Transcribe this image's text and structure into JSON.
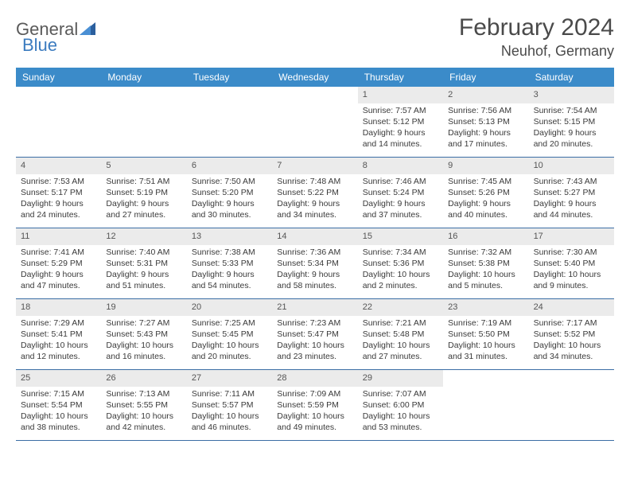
{
  "logo": {
    "text1": "General",
    "text2": "Blue"
  },
  "title": "February 2024",
  "location": "Neuhof, Germany",
  "colors": {
    "header_bg": "#3b8bc9",
    "header_text": "#ffffff",
    "daynum_bg": "#ebebeb",
    "border": "#3b6ea5",
    "text": "#3a3a3a",
    "logo_gray": "#5a5a5a",
    "logo_blue": "#3b7bbf"
  },
  "day_names": [
    "Sunday",
    "Monday",
    "Tuesday",
    "Wednesday",
    "Thursday",
    "Friday",
    "Saturday"
  ],
  "weeks": [
    [
      {
        "empty": true
      },
      {
        "empty": true
      },
      {
        "empty": true
      },
      {
        "empty": true
      },
      {
        "n": "1",
        "sr": "Sunrise: 7:57 AM",
        "ss": "Sunset: 5:12 PM",
        "d1": "Daylight: 9 hours",
        "d2": "and 14 minutes."
      },
      {
        "n": "2",
        "sr": "Sunrise: 7:56 AM",
        "ss": "Sunset: 5:13 PM",
        "d1": "Daylight: 9 hours",
        "d2": "and 17 minutes."
      },
      {
        "n": "3",
        "sr": "Sunrise: 7:54 AM",
        "ss": "Sunset: 5:15 PM",
        "d1": "Daylight: 9 hours",
        "d2": "and 20 minutes."
      }
    ],
    [
      {
        "n": "4",
        "sr": "Sunrise: 7:53 AM",
        "ss": "Sunset: 5:17 PM",
        "d1": "Daylight: 9 hours",
        "d2": "and 24 minutes."
      },
      {
        "n": "5",
        "sr": "Sunrise: 7:51 AM",
        "ss": "Sunset: 5:19 PM",
        "d1": "Daylight: 9 hours",
        "d2": "and 27 minutes."
      },
      {
        "n": "6",
        "sr": "Sunrise: 7:50 AM",
        "ss": "Sunset: 5:20 PM",
        "d1": "Daylight: 9 hours",
        "d2": "and 30 minutes."
      },
      {
        "n": "7",
        "sr": "Sunrise: 7:48 AM",
        "ss": "Sunset: 5:22 PM",
        "d1": "Daylight: 9 hours",
        "d2": "and 34 minutes."
      },
      {
        "n": "8",
        "sr": "Sunrise: 7:46 AM",
        "ss": "Sunset: 5:24 PM",
        "d1": "Daylight: 9 hours",
        "d2": "and 37 minutes."
      },
      {
        "n": "9",
        "sr": "Sunrise: 7:45 AM",
        "ss": "Sunset: 5:26 PM",
        "d1": "Daylight: 9 hours",
        "d2": "and 40 minutes."
      },
      {
        "n": "10",
        "sr": "Sunrise: 7:43 AM",
        "ss": "Sunset: 5:27 PM",
        "d1": "Daylight: 9 hours",
        "d2": "and 44 minutes."
      }
    ],
    [
      {
        "n": "11",
        "sr": "Sunrise: 7:41 AM",
        "ss": "Sunset: 5:29 PM",
        "d1": "Daylight: 9 hours",
        "d2": "and 47 minutes."
      },
      {
        "n": "12",
        "sr": "Sunrise: 7:40 AM",
        "ss": "Sunset: 5:31 PM",
        "d1": "Daylight: 9 hours",
        "d2": "and 51 minutes."
      },
      {
        "n": "13",
        "sr": "Sunrise: 7:38 AM",
        "ss": "Sunset: 5:33 PM",
        "d1": "Daylight: 9 hours",
        "d2": "and 54 minutes."
      },
      {
        "n": "14",
        "sr": "Sunrise: 7:36 AM",
        "ss": "Sunset: 5:34 PM",
        "d1": "Daylight: 9 hours",
        "d2": "and 58 minutes."
      },
      {
        "n": "15",
        "sr": "Sunrise: 7:34 AM",
        "ss": "Sunset: 5:36 PM",
        "d1": "Daylight: 10 hours",
        "d2": "and 2 minutes."
      },
      {
        "n": "16",
        "sr": "Sunrise: 7:32 AM",
        "ss": "Sunset: 5:38 PM",
        "d1": "Daylight: 10 hours",
        "d2": "and 5 minutes."
      },
      {
        "n": "17",
        "sr": "Sunrise: 7:30 AM",
        "ss": "Sunset: 5:40 PM",
        "d1": "Daylight: 10 hours",
        "d2": "and 9 minutes."
      }
    ],
    [
      {
        "n": "18",
        "sr": "Sunrise: 7:29 AM",
        "ss": "Sunset: 5:41 PM",
        "d1": "Daylight: 10 hours",
        "d2": "and 12 minutes."
      },
      {
        "n": "19",
        "sr": "Sunrise: 7:27 AM",
        "ss": "Sunset: 5:43 PM",
        "d1": "Daylight: 10 hours",
        "d2": "and 16 minutes."
      },
      {
        "n": "20",
        "sr": "Sunrise: 7:25 AM",
        "ss": "Sunset: 5:45 PM",
        "d1": "Daylight: 10 hours",
        "d2": "and 20 minutes."
      },
      {
        "n": "21",
        "sr": "Sunrise: 7:23 AM",
        "ss": "Sunset: 5:47 PM",
        "d1": "Daylight: 10 hours",
        "d2": "and 23 minutes."
      },
      {
        "n": "22",
        "sr": "Sunrise: 7:21 AM",
        "ss": "Sunset: 5:48 PM",
        "d1": "Daylight: 10 hours",
        "d2": "and 27 minutes."
      },
      {
        "n": "23",
        "sr": "Sunrise: 7:19 AM",
        "ss": "Sunset: 5:50 PM",
        "d1": "Daylight: 10 hours",
        "d2": "and 31 minutes."
      },
      {
        "n": "24",
        "sr": "Sunrise: 7:17 AM",
        "ss": "Sunset: 5:52 PM",
        "d1": "Daylight: 10 hours",
        "d2": "and 34 minutes."
      }
    ],
    [
      {
        "n": "25",
        "sr": "Sunrise: 7:15 AM",
        "ss": "Sunset: 5:54 PM",
        "d1": "Daylight: 10 hours",
        "d2": "and 38 minutes."
      },
      {
        "n": "26",
        "sr": "Sunrise: 7:13 AM",
        "ss": "Sunset: 5:55 PM",
        "d1": "Daylight: 10 hours",
        "d2": "and 42 minutes."
      },
      {
        "n": "27",
        "sr": "Sunrise: 7:11 AM",
        "ss": "Sunset: 5:57 PM",
        "d1": "Daylight: 10 hours",
        "d2": "and 46 minutes."
      },
      {
        "n": "28",
        "sr": "Sunrise: 7:09 AM",
        "ss": "Sunset: 5:59 PM",
        "d1": "Daylight: 10 hours",
        "d2": "and 49 minutes."
      },
      {
        "n": "29",
        "sr": "Sunrise: 7:07 AM",
        "ss": "Sunset: 6:00 PM",
        "d1": "Daylight: 10 hours",
        "d2": "and 53 minutes."
      },
      {
        "empty": true
      },
      {
        "empty": true
      }
    ]
  ]
}
